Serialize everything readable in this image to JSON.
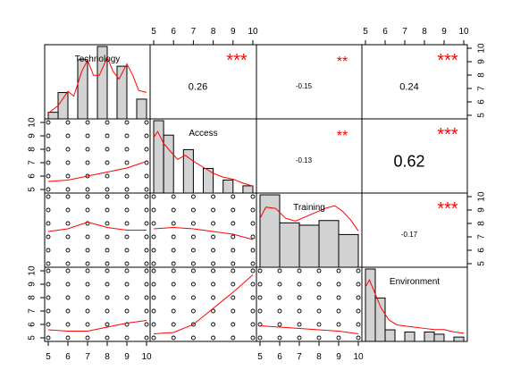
{
  "chart_data": {
    "type": "scatter",
    "variables": [
      "Technology",
      "Access",
      "Training",
      "Environment"
    ],
    "axis": {
      "ticks": [
        5,
        6,
        7,
        8,
        9,
        10
      ],
      "tick_labels": [
        "5",
        "6",
        "7",
        "8",
        "9",
        "10"
      ],
      "range": [
        5,
        10
      ]
    },
    "histograms": {
      "Technology": {
        "bins": [
          5,
          5.5,
          6,
          6.5,
          7,
          7.5,
          8,
          8.5,
          9,
          9.5,
          10
        ],
        "bars": [
          [
            5,
            6,
            1
          ],
          [
            6,
            7,
            4
          ],
          [
            7,
            7.5,
            10
          ],
          [
            7.5,
            8,
            4
          ],
          [
            8,
            8.5,
            11
          ],
          [
            8.5,
            9,
            4
          ],
          [
            9,
            9.5,
            9
          ],
          [
            9.5,
            10,
            2
          ]
        ],
        "shown_bars": [
          [
            5.0,
            5.5,
            1
          ],
          [
            5.5,
            6.0,
            4
          ],
          [
            6.5,
            7.0,
            9
          ],
          [
            7.5,
            8.0,
            11
          ],
          [
            8.5,
            9.0,
            8
          ],
          [
            9.5,
            10.0,
            3
          ]
        ],
        "density": [
          [
            5,
            0.6
          ],
          [
            5.5,
            1.4
          ],
          [
            6,
            2.9
          ],
          [
            6.3,
            2.4
          ],
          [
            6.7,
            5.0
          ],
          [
            7,
            6.2
          ],
          [
            7.3,
            4.6
          ],
          [
            7.6,
            4.6
          ],
          [
            8,
            6.5
          ],
          [
            8.3,
            5.0
          ],
          [
            8.6,
            4.2
          ],
          [
            9,
            5.8
          ],
          [
            9.3,
            4.6
          ],
          [
            9.6,
            3.0
          ],
          [
            10,
            2.8
          ]
        ]
      },
      "Access": {
        "shown_bars": [
          [
            5.0,
            5.5,
            10
          ],
          [
            5.5,
            6.0,
            8
          ],
          [
            6.5,
            7.0,
            6
          ],
          [
            7.5,
            8.0,
            3.4
          ],
          [
            8.5,
            9.0,
            1.8
          ],
          [
            9.5,
            10.0,
            1.0
          ]
        ],
        "density": [
          [
            5,
            5.6
          ],
          [
            5.2,
            6.2
          ],
          [
            5.5,
            5.0
          ],
          [
            5.8,
            4.3
          ],
          [
            6.2,
            3.4
          ],
          [
            6.6,
            3.8
          ],
          [
            7,
            3.2
          ],
          [
            7.5,
            2.6
          ],
          [
            8,
            2.0
          ],
          [
            8.5,
            1.6
          ],
          [
            9,
            1.4
          ],
          [
            9.5,
            1.0
          ],
          [
            10,
            0.7
          ]
        ]
      },
      "Training": {
        "shown_bars": [
          [
            5.0,
            6.0,
            6.2
          ],
          [
            6.0,
            7.0,
            3.8
          ],
          [
            7.0,
            8.0,
            3.6
          ],
          [
            8.0,
            9.0,
            4.0
          ],
          [
            9.0,
            10.0,
            2.8
          ]
        ],
        "density": [
          [
            5,
            3.5
          ],
          [
            5.3,
            4.3
          ],
          [
            5.8,
            4.2
          ],
          [
            6.3,
            3.5
          ],
          [
            6.8,
            3.3
          ],
          [
            7.3,
            3.6
          ],
          [
            7.8,
            3.9
          ],
          [
            8.3,
            4.2
          ],
          [
            8.8,
            4.4
          ],
          [
            9.2,
            4.0
          ],
          [
            9.6,
            3.4
          ],
          [
            10,
            2.6
          ]
        ]
      },
      "Environment": {
        "shown_bars": [
          [
            5.0,
            5.5,
            10
          ],
          [
            5.5,
            6.0,
            6.0
          ],
          [
            6.0,
            6.5,
            1.6
          ],
          [
            7.0,
            7.5,
            1.3
          ],
          [
            8.0,
            8.5,
            1.3
          ],
          [
            8.5,
            9.0,
            1.0
          ],
          [
            9.5,
            10.0,
            0.6
          ]
        ],
        "density": [
          [
            5,
            4.6
          ],
          [
            5.2,
            5.2
          ],
          [
            5.5,
            4.0
          ],
          [
            5.8,
            2.8
          ],
          [
            6.2,
            1.8
          ],
          [
            6.6,
            1.4
          ],
          [
            7,
            1.3
          ],
          [
            7.5,
            1.2
          ],
          [
            8,
            1.1
          ],
          [
            8.5,
            1.0
          ],
          [
            9,
            1.0
          ],
          [
            9.5,
            0.8
          ],
          [
            10,
            0.7
          ]
        ]
      }
    },
    "correlations": [
      {
        "row": 0,
        "col": 1,
        "value": "0.26",
        "stars": "***"
      },
      {
        "row": 0,
        "col": 2,
        "value": "-0.15",
        "stars": "**"
      },
      {
        "row": 0,
        "col": 3,
        "value": "0.24",
        "stars": "***"
      },
      {
        "row": 1,
        "col": 2,
        "value": "-0.13",
        "stars": "**"
      },
      {
        "row": 1,
        "col": 3,
        "value": "0.62",
        "stars": "***"
      },
      {
        "row": 2,
        "col": 3,
        "value": "-0.17",
        "stars": "***"
      }
    ],
    "scatter": {
      "points_grid": [
        5,
        6,
        7,
        8,
        9,
        10
      ],
      "smooths": {
        "1-0": [
          [
            5,
            5.6
          ],
          [
            6,
            5.7
          ],
          [
            7,
            6.0
          ],
          [
            8,
            6.3
          ],
          [
            9,
            6.6
          ],
          [
            10,
            7.1
          ]
        ],
        "2-0": [
          [
            5,
            7.4
          ],
          [
            6,
            7.6
          ],
          [
            7,
            8.1
          ],
          [
            8,
            7.7
          ],
          [
            9,
            7.5
          ],
          [
            10,
            7.5
          ]
        ],
        "2-1": [
          [
            5,
            7.6
          ],
          [
            6,
            7.7
          ],
          [
            7,
            7.6
          ],
          [
            8,
            7.4
          ],
          [
            9,
            7.2
          ],
          [
            10,
            6.8
          ]
        ],
        "3-0": [
          [
            5,
            5.6
          ],
          [
            6,
            5.5
          ],
          [
            7,
            5.5
          ],
          [
            8,
            5.8
          ],
          [
            9,
            6.1
          ],
          [
            10,
            6.3
          ]
        ],
        "3-1": [
          [
            5,
            5.3
          ],
          [
            6,
            5.4
          ],
          [
            7,
            6.0
          ],
          [
            8,
            7.2
          ],
          [
            9,
            8.4
          ],
          [
            10,
            9.7
          ]
        ],
        "3-2": [
          [
            5,
            5.9
          ],
          [
            6,
            5.8
          ],
          [
            7,
            5.7
          ],
          [
            8,
            5.6
          ],
          [
            9,
            5.5
          ],
          [
            10,
            5.3
          ]
        ]
      }
    },
    "colors": {
      "bar_fill": "#d3d3d3",
      "bar_stroke": "#000000",
      "smooth": "#ff0000",
      "stars": "#ff0000",
      "text": "#000000"
    }
  }
}
